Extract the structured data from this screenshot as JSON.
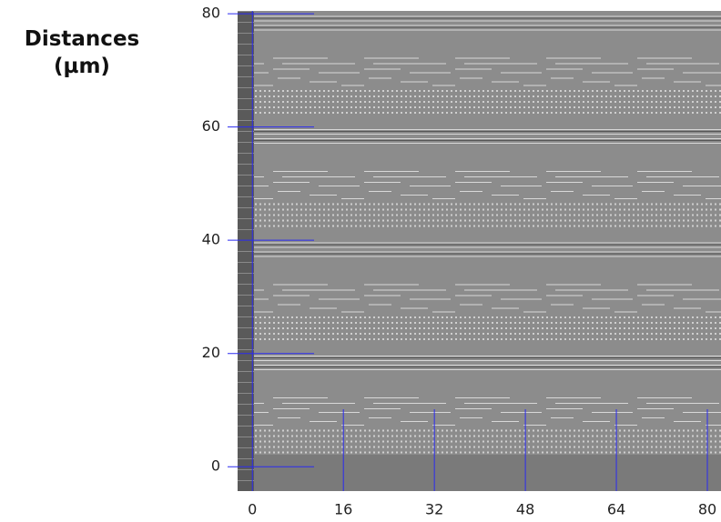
{
  "chart_data": {
    "type": "image",
    "y_label": "Distances (µm)",
    "xlim": [
      -2.6,
      82.4
    ],
    "ylim": [
      -4.3,
      80.5
    ],
    "xticks": [
      0,
      16,
      32,
      48,
      64,
      80
    ],
    "yticks": [
      0,
      20,
      40,
      60,
      80
    ],
    "color": "#2a2af0"
  }
}
